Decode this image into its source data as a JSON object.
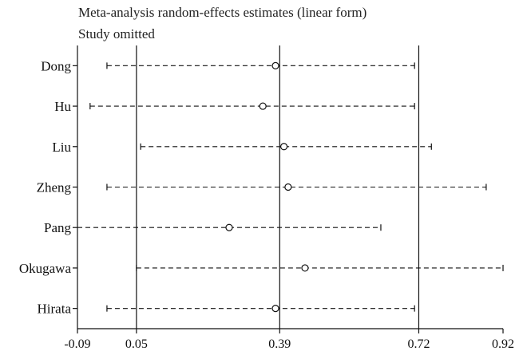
{
  "chart_data": {
    "type": "forest",
    "title": "Meta-analysis random-effects estimates (linear form)",
    "subtitle": "Study omitted",
    "studies": [
      {
        "name": "Dong",
        "estimate": 0.38,
        "lower": -0.02,
        "upper": 0.71
      },
      {
        "name": "Hu",
        "estimate": 0.35,
        "lower": -0.06,
        "upper": 0.71
      },
      {
        "name": "Liu",
        "estimate": 0.4,
        "lower": 0.06,
        "upper": 0.75
      },
      {
        "name": "Zheng",
        "estimate": 0.41,
        "lower": -0.02,
        "upper": 0.88
      },
      {
        "name": "Pang",
        "estimate": 0.27,
        "lower": -0.09,
        "upper": 0.63
      },
      {
        "name": "Okugawa",
        "estimate": 0.45,
        "lower": 0.05,
        "upper": 0.92
      },
      {
        "name": "Hirata",
        "estimate": 0.38,
        "lower": -0.02,
        "upper": 0.71
      }
    ],
    "x_ticks": [
      "-0.09",
      "0.05",
      "0.39",
      "0.72",
      "0.92"
    ],
    "x_tick_values": [
      -0.09,
      0.05,
      0.39,
      0.72,
      0.92
    ],
    "reference_lines": [
      0.05,
      0.39,
      0.72
    ],
    "xlim": [
      -0.09,
      0.92
    ]
  }
}
